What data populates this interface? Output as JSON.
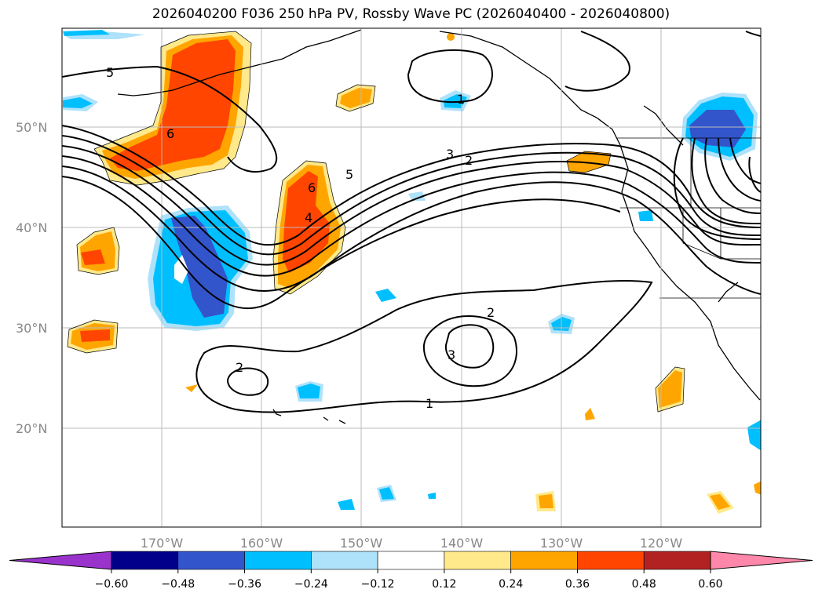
{
  "title": "2026040200 F036 250 hPa PV, Rossby Wave PC (2026040400 - 2026040800)",
  "lat_labels": [
    "50°N",
    "40°N",
    "30°N",
    "20°N"
  ],
  "lon_labels": [
    "170°W",
    "160°W",
    "150°W",
    "140°W",
    "130°W",
    "120°W"
  ],
  "contour_labels": [
    "5",
    "6",
    "1",
    "3",
    "2",
    "5",
    "6",
    "4",
    "2",
    "3",
    "1"
  ],
  "colorbar": {
    "ticks": [
      "−0.60",
      "−0.48",
      "−0.36",
      "−0.24",
      "−0.12",
      "0.12",
      "0.24",
      "0.36",
      "0.48",
      "0.60"
    ],
    "colors": [
      "#9933cc",
      "#00008b",
      "#3355cc",
      "#00bfff",
      "#aee2fa",
      "#ffffff",
      "#ffe98a",
      "#ffa500",
      "#ff4500",
      "#b22222",
      "#ff88aa"
    ]
  }
}
